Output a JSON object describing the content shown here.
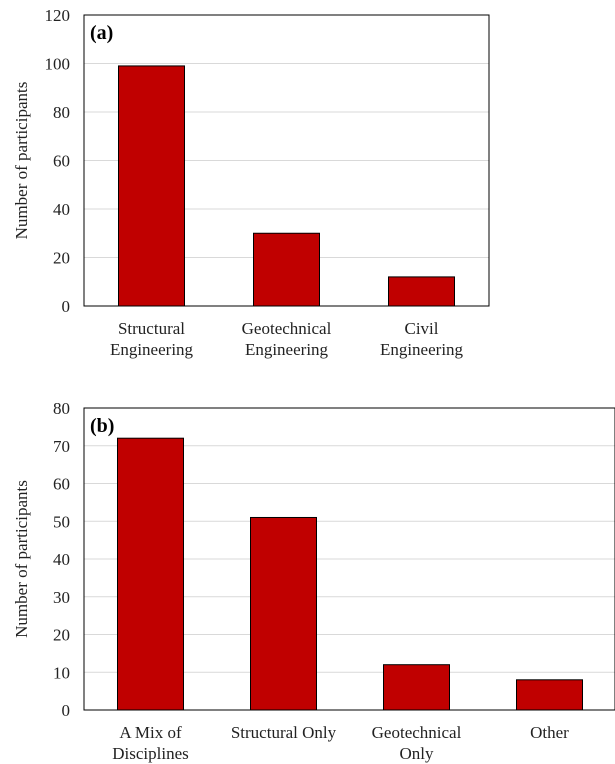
{
  "colors": {
    "bar": "#c00000",
    "grid": "#d9d9d9",
    "frame": "#000000"
  },
  "chart_data": [
    {
      "type": "bar",
      "panel_label": "(a)",
      "ylabel": "Number of participants",
      "xlabel": "",
      "categories": [
        [
          "Structural",
          "Engineering"
        ],
        [
          "Geotechnical",
          "Engineering"
        ],
        [
          "Civil",
          "Engineering"
        ]
      ],
      "values": [
        99,
        30,
        12
      ],
      "ylim": [
        0,
        120
      ],
      "yticks": [
        0,
        20,
        40,
        60,
        80,
        100,
        120
      ],
      "grid": true,
      "legend": "none"
    },
    {
      "type": "bar",
      "panel_label": "(b)",
      "ylabel": "Number of participants",
      "xlabel": "",
      "categories": [
        [
          "A Mix of",
          "Disciplines"
        ],
        [
          "Structural Only"
        ],
        [
          "Geotechnical",
          "Only"
        ],
        [
          "Other"
        ]
      ],
      "values": [
        72,
        51,
        12,
        8
      ],
      "ylim": [
        0,
        80
      ],
      "yticks": [
        0,
        10,
        20,
        30,
        40,
        50,
        60,
        70,
        80
      ],
      "grid": true,
      "legend": "none"
    }
  ]
}
